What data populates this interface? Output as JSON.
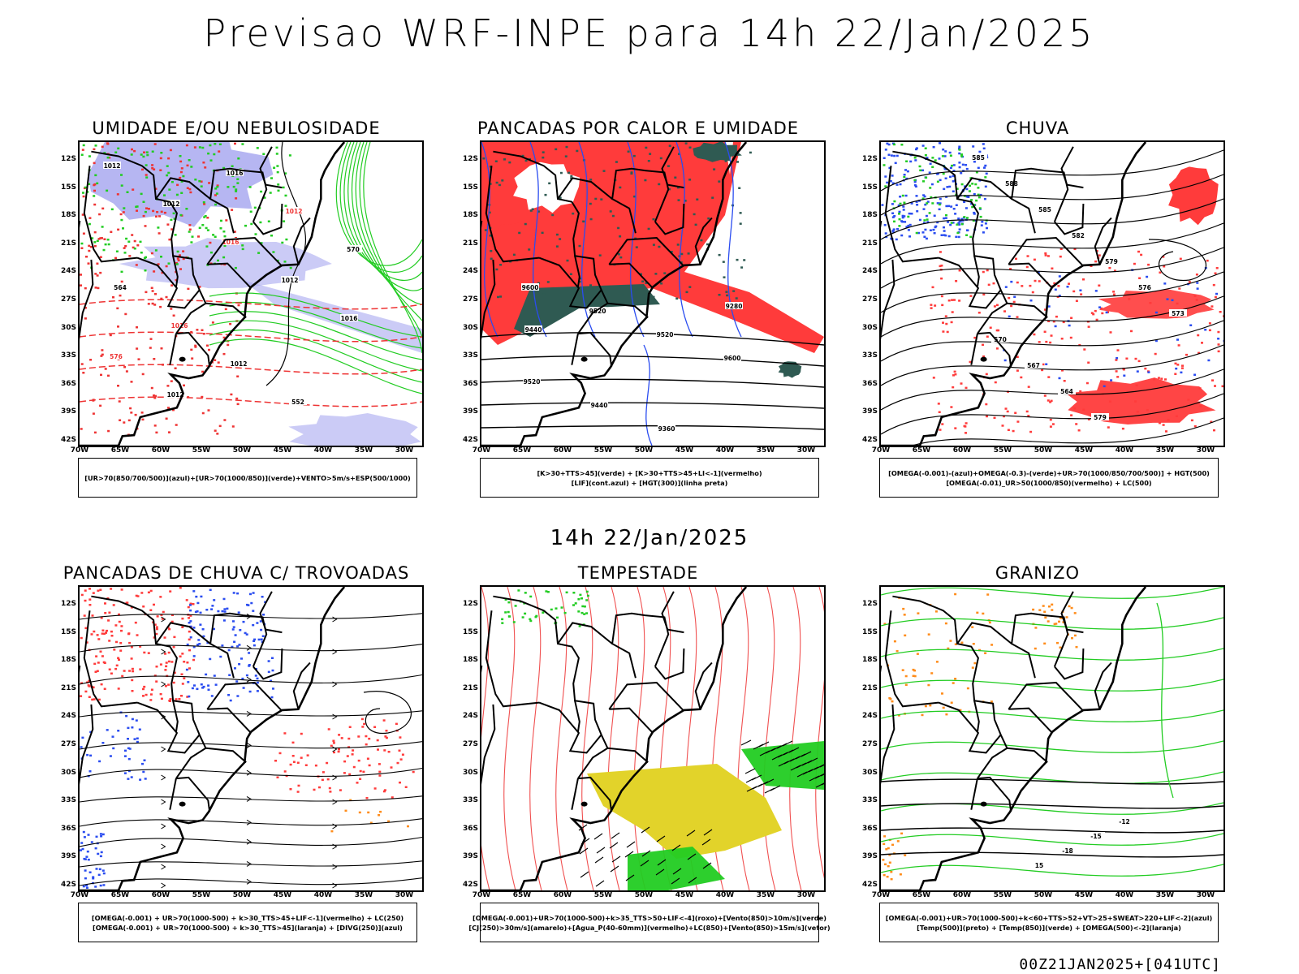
{
  "header": {
    "title": "Previsao WRF-INPE  para 14h 22/Jan/2025",
    "middle_date": "14h 22/Jan/2025",
    "run_info": "00Z21JAN2025+[041UTC]"
  },
  "axes": {
    "latitudes": [
      "12S",
      "15S",
      "18S",
      "21S",
      "24S",
      "27S",
      "30S",
      "33S",
      "36S",
      "39S",
      "42S"
    ],
    "longitudes": [
      "70W",
      "65W",
      "60W",
      "55W",
      "50W",
      "45W",
      "40W",
      "35W",
      "30W"
    ]
  },
  "colors": {
    "humidity_blue": "#a9a9f0",
    "humidity_green": "#22cc22",
    "red_field": "#ff3b3b",
    "blue_field": "#2a4cf0",
    "dark_teal": "#2f5a52",
    "yellow_field": "#e2d32a",
    "orange_field": "#ff8c1a"
  },
  "panels": [
    {
      "id": "umidade",
      "title": "UMIDADE E/OU NEBULOSIDADE",
      "legend": [
        "[UR>70(850/700/500)](azul)+[UR>70(1000/850)](verde)+VENTO>5m/s+ESP(500/1000)"
      ],
      "contour_labels": [
        "1012",
        "1012",
        "1016",
        "1012",
        "1016",
        "576",
        "1012",
        "1016",
        "1012",
        "570",
        "564",
        "1016",
        "1012",
        "552"
      ]
    },
    {
      "id": "pancadas_calor",
      "title": "PANCADAS POR CALOR E UMIDADE",
      "legend": [
        "[K>30+TTS>45](verde) + [K>30+TTS>45+LI<-1](vermelho)",
        "[LIF](cont.azul) + [HGT(300)](linha preta)"
      ],
      "contour_labels": [
        "9600",
        "9520",
        "9520",
        "9600",
        "9520",
        "9440",
        "9360",
        "9280",
        "9440"
      ]
    },
    {
      "id": "chuva",
      "title": "CHUVA",
      "legend": [
        "[OMEGA(-0.001)-(azul)+OMEGA(-0.3)-(verde)+UR>70(1000/850/700/500)] + HGT(500)",
        "[OMEGA(-0.01)_UR>50(1000/850)(vermelho) + LC(500)"
      ],
      "contour_labels": [
        "585",
        "588",
        "585",
        "582",
        "579",
        "576",
        "573",
        "570",
        "567",
        "564",
        "579"
      ]
    },
    {
      "id": "pancadas_trovoadas",
      "title": "PANCADAS DE CHUVA C/ TROVOADAS",
      "legend": [
        "[OMEGA(-0.001) + UR>70(1000-500) + k>30_TTS>45+LIF<-1](vermelho) + LC(250)",
        "[OMEGA(-0.001) + UR>70(1000-500) + k>30_TTS>45](laranja) + [DIVG(250)](azul)"
      ],
      "contour_labels": []
    },
    {
      "id": "tempestade",
      "title": "TEMPESTADE",
      "legend": [
        "[OMEGA(-0.001)+UR>70(1000-500)+k>35_TTS>50+LIF<-4](roxo)+[Vento(850)>10m/s](verde)",
        "[CJ(250)>30m/s](amarelo)+[Agua_P(40-60mm)](vermelho)+LC(850)+[Vento(850)>15m/s](vetor)"
      ],
      "contour_labels": []
    },
    {
      "id": "granizo",
      "title": "GRANIZO",
      "legend": [
        "[OMEGA(-0.001)+UR>70(1000-500)+k<60+TTS>52+VT>25+SWEAT>220+LIF<-2](azul)",
        "[Temp(500)](preto) + [Temp(850)](verde) + [OMEGA(500)<-2](laranja)"
      ],
      "contour_labels": [
        "-12",
        "-15",
        "-18",
        "15"
      ]
    }
  ]
}
